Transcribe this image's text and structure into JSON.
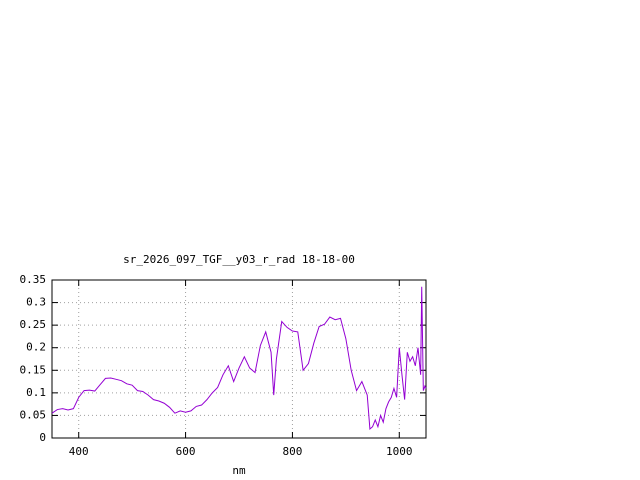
{
  "chart_data": {
    "type": "line",
    "title": "sr_2026_097_TGF__y03_r_rad 18-18-00",
    "x_label": "nm",
    "x": [
      350,
      360,
      370,
      380,
      390,
      400,
      410,
      420,
      430,
      440,
      450,
      460,
      470,
      480,
      490,
      500,
      510,
      520,
      530,
      540,
      550,
      560,
      570,
      580,
      590,
      600,
      610,
      620,
      630,
      640,
      650,
      660,
      670,
      680,
      690,
      700,
      710,
      720,
      730,
      740,
      750,
      760,
      765,
      770,
      780,
      790,
      800,
      810,
      820,
      830,
      840,
      850,
      860,
      870,
      880,
      890,
      900,
      910,
      920,
      930,
      940,
      945,
      950,
      955,
      960,
      965,
      970,
      975,
      980,
      985,
      990,
      995,
      1000,
      1005,
      1010,
      1015,
      1020,
      1025,
      1030,
      1035,
      1040,
      1042,
      1045,
      1048,
      1050
    ],
    "series": [
      {
        "name": null,
        "color": "#9400d3",
        "values": [
          0.055,
          0.063,
          0.065,
          0.062,
          0.065,
          0.09,
          0.105,
          0.106,
          0.104,
          0.118,
          0.132,
          0.133,
          0.13,
          0.127,
          0.12,
          0.117,
          0.105,
          0.103,
          0.095,
          0.085,
          0.082,
          0.077,
          0.068,
          0.055,
          0.06,
          0.057,
          0.06,
          0.07,
          0.073,
          0.085,
          0.1,
          0.112,
          0.14,
          0.16,
          0.125,
          0.155,
          0.18,
          0.155,
          0.145,
          0.205,
          0.235,
          0.19,
          0.095,
          0.175,
          0.258,
          0.245,
          0.237,
          0.235,
          0.15,
          0.165,
          0.21,
          0.247,
          0.252,
          0.268,
          0.262,
          0.265,
          0.22,
          0.15,
          0.105,
          0.125,
          0.095,
          0.02,
          0.025,
          0.04,
          0.025,
          0.05,
          0.035,
          0.065,
          0.08,
          0.09,
          0.11,
          0.09,
          0.2,
          0.14,
          0.085,
          0.19,
          0.17,
          0.18,
          0.16,
          0.2,
          0.14,
          0.335,
          0.105,
          0.115,
          0.11
        ]
      }
    ],
    "xlim": [
      350,
      1050
    ],
    "ylim": [
      0,
      0.35
    ],
    "xticks": [
      400,
      600,
      800,
      1000
    ],
    "yticks": [
      0,
      0.05,
      0.1,
      0.15,
      0.2,
      0.25,
      0.3,
      0.35
    ],
    "grid": true
  }
}
